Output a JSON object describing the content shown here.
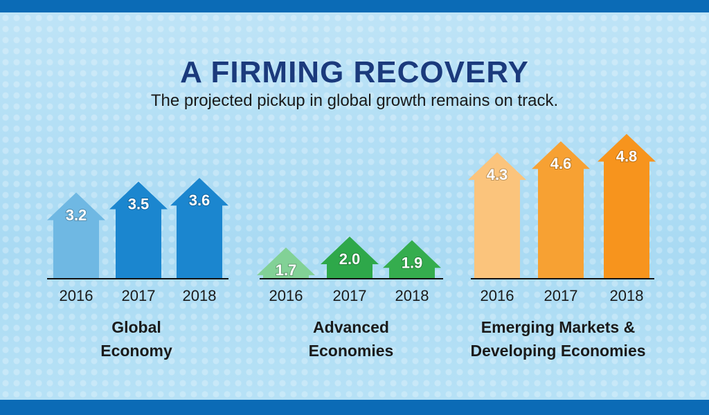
{
  "title": "A FIRMING RECOVERY",
  "subtitle": "The projected pickup in global growth remains on track.",
  "chart_data": {
    "type": "bar",
    "style": "arrow",
    "categories": [
      "2016",
      "2017",
      "2018"
    ],
    "series": [
      {
        "name": "Global Economy",
        "values": [
          3.2,
          3.5,
          3.6
        ],
        "colors": [
          "#6fb8e3",
          "#1b86cf",
          "#1b86cf"
        ]
      },
      {
        "name": "Advanced Economies",
        "values": [
          1.7,
          2.0,
          1.9
        ],
        "colors": [
          "#82d196",
          "#2ea84a",
          "#35ad4e"
        ]
      },
      {
        "name": "Emerging Markets & Developing Economies",
        "values": [
          4.3,
          4.6,
          4.8
        ],
        "colors": [
          "#fbc47c",
          "#f7a133",
          "#f7941d"
        ]
      }
    ]
  },
  "group_labels": [
    [
      "Global",
      "Economy"
    ],
    [
      "Advanced",
      "Economies"
    ],
    [
      "Emerging Markets &",
      "Developing Economies"
    ]
  ]
}
